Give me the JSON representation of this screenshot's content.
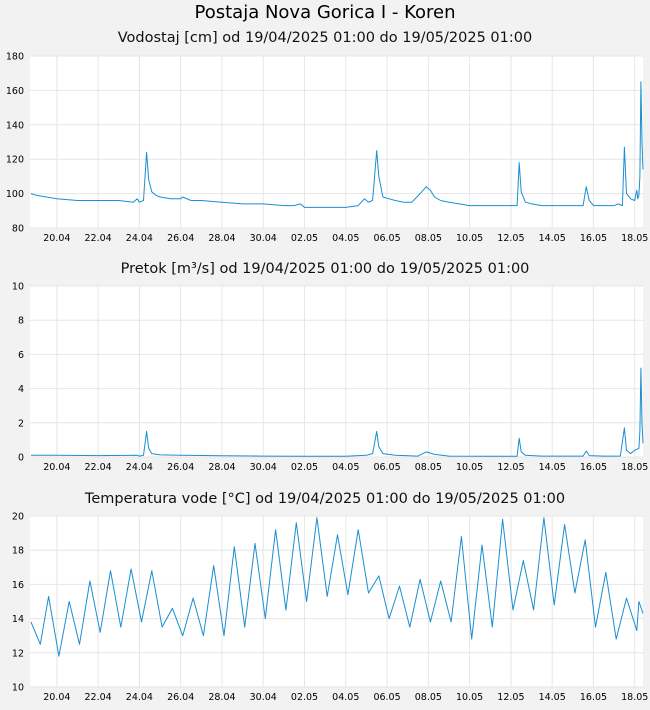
{
  "page_title": "Postaja Nova Gorica I - Koren",
  "chart_data": [
    {
      "type": "line",
      "title": "Vodostaj [cm] od 19/04/2025 01:00 do 19/05/2025 01:00",
      "xlabel": "",
      "ylabel": "",
      "xlim_days": [
        18.7,
        48.4
      ],
      "ylim": [
        80,
        180
      ],
      "yticks": [
        80,
        100,
        120,
        140,
        160,
        180
      ],
      "xtick_days": [
        20,
        22,
        24,
        26,
        28,
        30,
        32,
        34,
        36,
        38,
        40,
        42,
        44,
        46,
        48
      ],
      "xtick_labels": [
        "20.04",
        "22.04",
        "24.04",
        "26.04",
        "28.04",
        "30.04",
        "02.05",
        "04.05",
        "06.05",
        "08.05",
        "10.05",
        "12.05",
        "14.05",
        "16.05",
        "18.05"
      ],
      "grid": true,
      "color": "#1a8fd1",
      "series": [
        {
          "x_day": [
            18.75,
            19.0,
            19.5,
            20.0,
            21.0,
            22.0,
            23.0,
            23.7,
            23.9,
            24.0,
            24.2,
            24.35,
            24.45,
            24.6,
            24.8,
            25.0,
            25.5,
            26.0,
            26.1,
            26.5,
            27.0,
            28.0,
            29.0,
            30.0,
            31.0,
            31.5,
            31.8,
            32.0,
            33.0,
            34.0,
            34.6,
            34.9,
            35.1,
            35.3,
            35.5,
            35.6,
            35.8,
            36.1,
            36.4,
            36.8,
            37.2,
            37.6,
            37.9,
            38.1,
            38.3,
            38.6,
            39.0,
            39.5,
            40.0,
            41.0,
            42.0,
            42.3,
            42.4,
            42.5,
            42.7,
            43.0,
            43.5,
            44.0,
            45.0,
            45.5,
            45.65,
            45.8,
            46.0,
            46.5,
            47.0,
            47.2,
            47.4,
            47.5,
            47.6,
            47.8,
            48.0,
            48.1,
            48.15,
            48.2,
            48.25,
            48.3,
            48.35,
            48.4
          ],
          "y": [
            100,
            99,
            98,
            97,
            96,
            96,
            96,
            95,
            97,
            95,
            96,
            124,
            108,
            101,
            99,
            98,
            97,
            97,
            98,
            96,
            96,
            95,
            94,
            94,
            93,
            93,
            94,
            92,
            92,
            92,
            93,
            97,
            95,
            96,
            125,
            110,
            98,
            97,
            96,
            95,
            95,
            100,
            104,
            102,
            98,
            96,
            95,
            94,
            93,
            93,
            93,
            93,
            118,
            101,
            95,
            94,
            93,
            93,
            93,
            93,
            104,
            96,
            93,
            93,
            93,
            94,
            93,
            127,
            100,
            97,
            96,
            102,
            97,
            99,
            110,
            165,
            130,
            114
          ]
        }
      ]
    },
    {
      "type": "line",
      "title": "Pretok [m³/s] od 19/04/2025 01:00 do 19/05/2025 01:00",
      "xlabel": "",
      "ylabel": "",
      "xlim_days": [
        18.7,
        48.4
      ],
      "ylim": [
        0,
        10
      ],
      "yticks": [
        0,
        2,
        4,
        6,
        8,
        10
      ],
      "xtick_days": [
        20,
        22,
        24,
        26,
        28,
        30,
        32,
        34,
        36,
        38,
        40,
        42,
        44,
        46,
        48
      ],
      "xtick_labels": [
        "20.04",
        "22.04",
        "24.04",
        "26.04",
        "28.04",
        "30.04",
        "02.05",
        "04.05",
        "06.05",
        "08.05",
        "10.05",
        "12.05",
        "14.05",
        "16.05",
        "18.05"
      ],
      "grid": true,
      "color": "#1a8fd1",
      "series": [
        {
          "x_day": [
            18.75,
            20.0,
            22.0,
            23.9,
            24.0,
            24.2,
            24.35,
            24.45,
            24.6,
            25.0,
            26.0,
            28.0,
            30.0,
            32.0,
            34.0,
            35.0,
            35.3,
            35.5,
            35.6,
            35.8,
            36.4,
            37.5,
            37.9,
            38.3,
            39.0,
            41.0,
            42.3,
            42.4,
            42.5,
            42.7,
            43.5,
            45.5,
            45.65,
            45.8,
            46.5,
            47.3,
            47.5,
            47.6,
            47.8,
            48.0,
            48.2,
            48.25,
            48.3,
            48.35,
            48.4
          ],
          "y": [
            0.1,
            0.1,
            0.08,
            0.1,
            0.05,
            0.1,
            1.5,
            0.5,
            0.2,
            0.12,
            0.1,
            0.07,
            0.05,
            0.04,
            0.04,
            0.1,
            0.2,
            1.5,
            0.6,
            0.2,
            0.1,
            0.05,
            0.3,
            0.15,
            0.05,
            0.04,
            0.04,
            1.1,
            0.3,
            0.1,
            0.05,
            0.05,
            0.35,
            0.08,
            0.05,
            0.05,
            1.7,
            0.4,
            0.2,
            0.4,
            0.5,
            1.5,
            5.2,
            2.0,
            0.8
          ]
        }
      ]
    },
    {
      "type": "line",
      "title": "Temperatura vode [°C] od 19/04/2025 01:00 do 19/05/2025 01:00",
      "xlabel": "",
      "ylabel": "",
      "xlim_days": [
        18.7,
        48.4
      ],
      "ylim": [
        10,
        20
      ],
      "yticks": [
        10,
        12,
        14,
        16,
        18,
        20
      ],
      "xtick_days": [
        20,
        22,
        24,
        26,
        28,
        30,
        32,
        34,
        36,
        38,
        40,
        42,
        44,
        46,
        48
      ],
      "xtick_labels": [
        "20.04",
        "22.04",
        "24.04",
        "26.04",
        "28.04",
        "30.04",
        "02.05",
        "04.05",
        "06.05",
        "08.05",
        "10.05",
        "12.05",
        "14.05",
        "16.05",
        "18.05"
      ],
      "grid": true,
      "color": "#1a8fd1",
      "series": [
        {
          "x_day": [
            18.75,
            19.2,
            19.6,
            20.1,
            20.6,
            21.1,
            21.6,
            22.1,
            22.6,
            23.1,
            23.6,
            24.1,
            24.6,
            25.1,
            25.6,
            26.1,
            26.6,
            27.1,
            27.6,
            28.1,
            28.6,
            29.1,
            29.6,
            30.1,
            30.6,
            31.1,
            31.6,
            32.1,
            32.6,
            33.1,
            33.6,
            34.1,
            34.6,
            35.1,
            35.6,
            36.1,
            36.6,
            37.1,
            37.6,
            38.1,
            38.6,
            39.1,
            39.6,
            40.1,
            40.6,
            41.1,
            41.6,
            42.1,
            42.6,
            43.1,
            43.6,
            44.1,
            44.6,
            45.1,
            45.6,
            46.1,
            46.6,
            47.1,
            47.6,
            48.1,
            48.2,
            48.4
          ],
          "y": [
            13.8,
            12.5,
            15.3,
            11.8,
            15.0,
            12.5,
            16.2,
            13.2,
            16.8,
            13.5,
            16.9,
            13.8,
            16.8,
            13.5,
            14.6,
            13.0,
            15.2,
            13.0,
            17.1,
            13.0,
            18.2,
            13.5,
            18.4,
            14.0,
            19.2,
            14.5,
            19.6,
            15.0,
            19.9,
            15.3,
            18.9,
            15.4,
            19.2,
            15.5,
            16.5,
            14.0,
            15.9,
            13.5,
            16.3,
            13.8,
            16.2,
            13.8,
            18.8,
            12.8,
            18.3,
            13.5,
            19.8,
            14.5,
            17.4,
            14.5,
            19.9,
            14.8,
            19.5,
            15.5,
            18.6,
            13.5,
            16.7,
            12.8,
            15.2,
            13.3,
            15.0,
            14.3
          ]
        }
      ]
    }
  ]
}
